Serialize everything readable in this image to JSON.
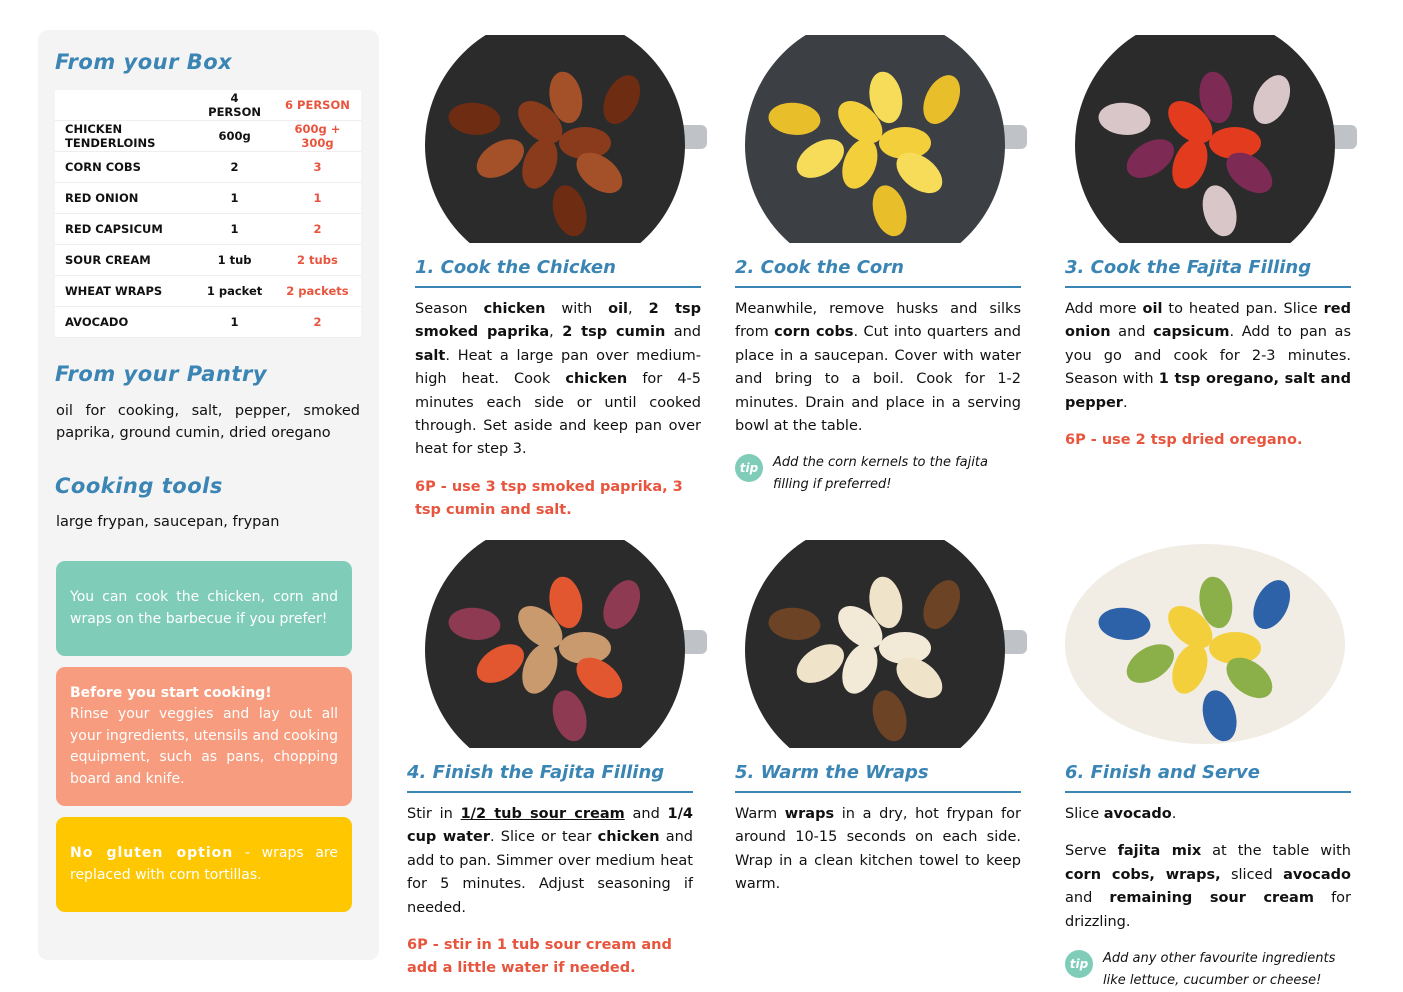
{
  "box": {
    "title": "From your Box",
    "headers": [
      "4 PERSON",
      "6 PERSON"
    ],
    "rows": [
      [
        "CHICKEN TENDERLOINS",
        "600g",
        "600g + 300g"
      ],
      [
        "CORN COBS",
        "2",
        "3"
      ],
      [
        "RED ONION",
        "1",
        "1"
      ],
      [
        "RED CAPSICUM",
        "1",
        "2"
      ],
      [
        "SOUR CREAM",
        "1 tub",
        "2 tubs"
      ],
      [
        "WHEAT WRAPS",
        "1 packet",
        "2 packets"
      ],
      [
        "AVOCADO",
        "1",
        "2"
      ]
    ]
  },
  "pantry": {
    "title": "From your Pantry",
    "text": "oil for cooking, salt, pepper, smoked paprika, ground cumin, dried oregano"
  },
  "tools": {
    "title": "Cooking tools",
    "text": "large frypan, saucepan, frypan"
  },
  "notes": [
    {
      "color": "#7fcdb8",
      "text": "You can cook the chicken, corn and wraps on the barbecue if you prefer!"
    },
    {
      "color": "#f79c7e",
      "heading": "Before you start cooking!",
      "text": "Rinse your veggies and lay out all your ingredients, utensils and cooking equipment, such as pans, chopping board and knife."
    },
    {
      "color": "#fec700",
      "heading": "No gluten option",
      "heading_inline": true,
      "text": " - wraps are replaced with corn tortillas."
    }
  ],
  "steps": [
    {
      "title": "1. Cook the Chicken",
      "paragraphs": [
        [
          {
            "text": "Season "
          },
          {
            "text": "chicken",
            "bold": true
          },
          {
            "text": " with "
          },
          {
            "text": "oil",
            "bold": true
          },
          {
            "text": ", "
          },
          {
            "text": "2 tsp smoked paprika",
            "bold": true
          },
          {
            "text": ", "
          },
          {
            "text": "2 tsp cumin",
            "bold": true
          },
          {
            "text": " and "
          },
          {
            "text": "salt",
            "bold": true
          },
          {
            "text": ". Heat a large pan over medium-high heat. Cook "
          },
          {
            "text": "chicken",
            "bold": true
          },
          {
            "text": " for 4-5 minutes each side or until cooked through. Set aside and keep pan over heat for step 3."
          }
        ]
      ],
      "note": "6P - use 3 tsp smoked paprika, 3 tsp cumin and salt."
    },
    {
      "title": "2. Cook the Corn",
      "paragraphs": [
        [
          {
            "text": "Meanwhile, remove husks and silks from "
          },
          {
            "text": "corn cobs",
            "bold": true
          },
          {
            "text": ". Cut into quarters and place in a saucepan. Cover with water and bring to a boil. Cook for 1-2 minutes. Drain and place in a serving bowl at the table."
          }
        ]
      ],
      "tip": {
        "icon": "tip",
        "text": "Add the corn kernels to the fajita filling if preferred!"
      }
    },
    {
      "title": "3. Cook the Fajita Filling",
      "paragraphs": [
        [
          {
            "text": "Add more "
          },
          {
            "text": "oil",
            "bold": true
          },
          {
            "text": " to heated pan. Slice "
          },
          {
            "text": "red onion",
            "bold": true
          },
          {
            "text": " and "
          },
          {
            "text": "capsicum",
            "bold": true
          },
          {
            "text": ". Add to pan as you go and cook for 2-3 minutes. Season with "
          },
          {
            "text": "1 tsp oregano, salt and pepper",
            "bold": true
          },
          {
            "text": "."
          }
        ]
      ],
      "note": "6P - use 2 tsp dried oregano."
    },
    {
      "title": "4. Finish the Fajita Filling",
      "paragraphs": [
        [
          {
            "text": "Stir in "
          },
          {
            "text": "1/2 tub sour cream",
            "bold": true,
            "underline": true
          },
          {
            "text": " and "
          },
          {
            "text": "1/4 cup water",
            "bold": true
          },
          {
            "text": ". Slice or tear "
          },
          {
            "text": "chicken",
            "bold": true
          },
          {
            "text": " and add to pan. Simmer over medium heat for 5 minutes. Adjust seasoning if needed."
          }
        ]
      ],
      "note": "6P - stir in 1 tub sour cream and add a little water if needed."
    },
    {
      "title": "5. Warm the Wraps",
      "paragraphs": [
        [
          {
            "text": "Warm "
          },
          {
            "text": "wraps",
            "bold": true
          },
          {
            "text": " in a dry, hot frypan for around 10-15 seconds on each side. Wrap in a clean kitchen towel to keep warm."
          }
        ]
      ]
    },
    {
      "title": "6. Finish and Serve",
      "paragraphs": [
        [
          {
            "text": "Slice "
          },
          {
            "text": "avocado",
            "bold": true
          },
          {
            "text": "."
          }
        ],
        [
          {
            "text": "Serve "
          },
          {
            "text": "fajita mix",
            "bold": true
          },
          {
            "text": " at the table with "
          },
          {
            "text": "corn cobs, wraps,",
            "bold": true
          },
          {
            "text": " sliced "
          },
          {
            "text": "avocado",
            "bold": true
          },
          {
            "text": " and "
          },
          {
            "text": "remaining sour cream",
            "bold": true
          },
          {
            "text": " for drizzling."
          }
        ]
      ],
      "tip": {
        "icon": "tip",
        "text": "Add any other favourite ingredients like lettuce, cucumber or cheese!"
      }
    }
  ]
}
